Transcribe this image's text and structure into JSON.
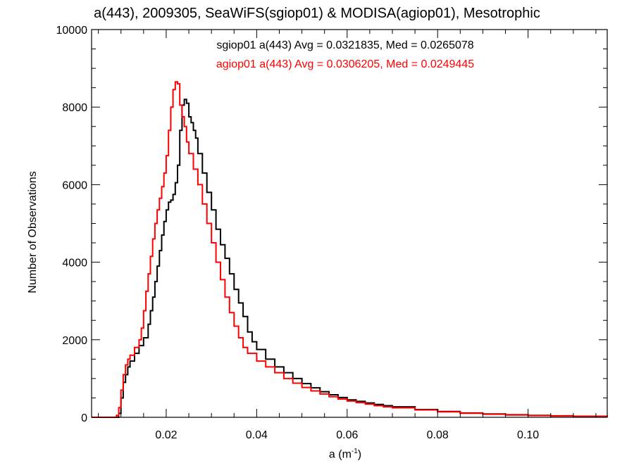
{
  "chart_data": {
    "type": "line",
    "style": "step-histogram",
    "title": "a(443), 2009305, SeaWiFS(sgiop01) & MODISA(agiop01), Mesotrophic",
    "xlabel": "a",
    "xlabel_unit_base": "(m",
    "xlabel_unit_exp": "-1",
    "xlabel_unit_close": ")",
    "ylabel": "Number of Observations",
    "xlim": [
      0.0035,
      0.1175
    ],
    "ylim": [
      0,
      10000
    ],
    "x_ticks": [
      0.02,
      0.04,
      0.06,
      0.08,
      0.1
    ],
    "x_tick_labels": [
      "0.02",
      "0.04",
      "0.06",
      "0.08",
      "0.10"
    ],
    "y_ticks": [
      0,
      2000,
      4000,
      6000,
      8000,
      10000
    ],
    "y_tick_labels": [
      "0",
      "2000",
      "4000",
      "6000",
      "8000",
      "10000"
    ],
    "grid": false,
    "legend_placement": "top-center",
    "series": [
      {
        "name": "sgiop01 a(443) Avg = 0.0321835, Med = 0.0265078",
        "color": "#000000",
        "points": [
          [
            0.0035,
            0
          ],
          [
            0.009,
            0
          ],
          [
            0.0095,
            100
          ],
          [
            0.01,
            500
          ],
          [
            0.0105,
            900
          ],
          [
            0.011,
            1100
          ],
          [
            0.0115,
            1300
          ],
          [
            0.012,
            1450
          ],
          [
            0.013,
            1650
          ],
          [
            0.014,
            1850
          ],
          [
            0.015,
            2050
          ],
          [
            0.016,
            2400
          ],
          [
            0.0165,
            2750
          ],
          [
            0.017,
            3100
          ],
          [
            0.0175,
            3500
          ],
          [
            0.018,
            3900
          ],
          [
            0.0185,
            4300
          ],
          [
            0.019,
            4700
          ],
          [
            0.0195,
            5050
          ],
          [
            0.02,
            5350
          ],
          [
            0.0205,
            5550
          ],
          [
            0.021,
            5600
          ],
          [
            0.0215,
            5750
          ],
          [
            0.022,
            6050
          ],
          [
            0.0225,
            6500
          ],
          [
            0.023,
            7400
          ],
          [
            0.0235,
            8050
          ],
          [
            0.024,
            8200
          ],
          [
            0.0245,
            8100
          ],
          [
            0.025,
            7750
          ],
          [
            0.0255,
            7600
          ],
          [
            0.026,
            7400
          ],
          [
            0.0265,
            7200
          ],
          [
            0.027,
            6800
          ],
          [
            0.028,
            6300
          ],
          [
            0.029,
            5800
          ],
          [
            0.03,
            5350
          ],
          [
            0.031,
            4850
          ],
          [
            0.032,
            4450
          ],
          [
            0.033,
            4100
          ],
          [
            0.034,
            3700
          ],
          [
            0.035,
            3300
          ],
          [
            0.036,
            2950
          ],
          [
            0.037,
            2600
          ],
          [
            0.038,
            2200
          ],
          [
            0.039,
            1950
          ],
          [
            0.04,
            1750
          ],
          [
            0.042,
            1500
          ],
          [
            0.044,
            1300
          ],
          [
            0.046,
            1150
          ],
          [
            0.048,
            1000
          ],
          [
            0.05,
            870
          ],
          [
            0.052,
            760
          ],
          [
            0.054,
            660
          ],
          [
            0.056,
            580
          ],
          [
            0.058,
            510
          ],
          [
            0.06,
            450
          ],
          [
            0.062,
            410
          ],
          [
            0.064,
            370
          ],
          [
            0.066,
            330
          ],
          [
            0.068,
            300
          ],
          [
            0.07,
            270
          ],
          [
            0.075,
            200
          ],
          [
            0.08,
            150
          ],
          [
            0.085,
            110
          ],
          [
            0.09,
            85
          ],
          [
            0.095,
            65
          ],
          [
            0.1,
            50
          ],
          [
            0.105,
            38
          ],
          [
            0.11,
            28
          ],
          [
            0.1175,
            15
          ]
        ]
      },
      {
        "name": "agiop01 a(443) Avg = 0.0306205, Med = 0.0249445",
        "color": "#ff0000",
        "points": [
          [
            0.0035,
            0
          ],
          [
            0.0085,
            0
          ],
          [
            0.009,
            50
          ],
          [
            0.0095,
            250
          ],
          [
            0.01,
            700
          ],
          [
            0.0105,
            1100
          ],
          [
            0.011,
            1350
          ],
          [
            0.0115,
            1500
          ],
          [
            0.012,
            1600
          ],
          [
            0.013,
            1800
          ],
          [
            0.014,
            2000
          ],
          [
            0.0145,
            2300
          ],
          [
            0.015,
            2750
          ],
          [
            0.0155,
            3250
          ],
          [
            0.016,
            3700
          ],
          [
            0.0165,
            4150
          ],
          [
            0.017,
            4600
          ],
          [
            0.0175,
            5000
          ],
          [
            0.018,
            5350
          ],
          [
            0.0185,
            5650
          ],
          [
            0.019,
            5950
          ],
          [
            0.0195,
            6300
          ],
          [
            0.02,
            6750
          ],
          [
            0.0205,
            7400
          ],
          [
            0.021,
            8000
          ],
          [
            0.0215,
            8450
          ],
          [
            0.022,
            8650
          ],
          [
            0.0225,
            8600
          ],
          [
            0.023,
            8050
          ],
          [
            0.0235,
            7750
          ],
          [
            0.024,
            7500
          ],
          [
            0.0245,
            7100
          ],
          [
            0.025,
            6800
          ],
          [
            0.026,
            6400
          ],
          [
            0.027,
            6000
          ],
          [
            0.028,
            5500
          ],
          [
            0.029,
            5000
          ],
          [
            0.03,
            4500
          ],
          [
            0.031,
            4000
          ],
          [
            0.032,
            3550
          ],
          [
            0.033,
            3100
          ],
          [
            0.034,
            2700
          ],
          [
            0.035,
            2350
          ],
          [
            0.036,
            2050
          ],
          [
            0.037,
            1800
          ],
          [
            0.038,
            1650
          ],
          [
            0.04,
            1450
          ],
          [
            0.042,
            1300
          ],
          [
            0.044,
            1150
          ],
          [
            0.046,
            1000
          ],
          [
            0.048,
            880
          ],
          [
            0.05,
            770
          ],
          [
            0.052,
            680
          ],
          [
            0.054,
            600
          ],
          [
            0.056,
            530
          ],
          [
            0.058,
            470
          ],
          [
            0.06,
            420
          ],
          [
            0.062,
            380
          ],
          [
            0.064,
            340
          ],
          [
            0.066,
            300
          ],
          [
            0.068,
            270
          ],
          [
            0.07,
            245
          ],
          [
            0.075,
            190
          ],
          [
            0.08,
            140
          ],
          [
            0.085,
            105
          ],
          [
            0.09,
            80
          ],
          [
            0.095,
            60
          ],
          [
            0.1,
            45
          ],
          [
            0.105,
            35
          ],
          [
            0.11,
            25
          ],
          [
            0.1175,
            12
          ]
        ]
      }
    ]
  }
}
